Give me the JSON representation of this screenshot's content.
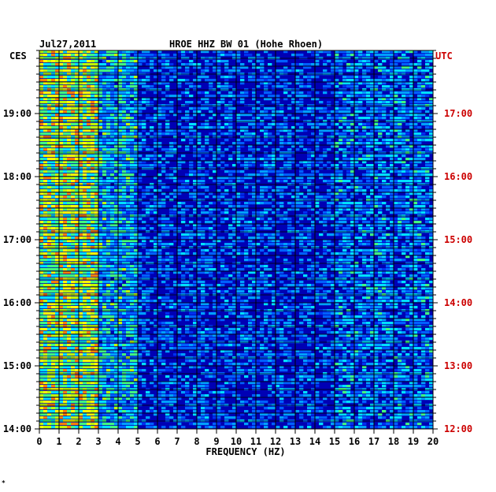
{
  "header": {
    "date": "Jul27,2011",
    "station": "HROE HHZ BW 01 (Hohe Rhoen)"
  },
  "left_zone": "CES",
  "right_zone": "UTC",
  "colors": {
    "background": "#0000b4",
    "left_text": "#000000",
    "right_text": "#cc0000"
  },
  "chart_data": {
    "type": "heatmap",
    "title": "HROE HHZ BW 01 (Hohe Rhoen)",
    "xlabel": "FREQUENCY (HZ)",
    "xlim": [
      0,
      20
    ],
    "x_ticks": [
      "0",
      "1",
      "2",
      "3",
      "4",
      "5",
      "6",
      "7",
      "8",
      "9",
      "10",
      "11",
      "12",
      "13",
      "14",
      "15",
      "16",
      "17",
      "18",
      "19",
      "20"
    ],
    "y_left_ticks": [
      "19:00",
      "18:00",
      "17:00",
      "16:00",
      "15:00",
      "14:00"
    ],
    "y_right_ticks": [
      "17:00",
      "16:00",
      "15:00",
      "14:00",
      "13:00",
      "12:00"
    ],
    "time_range_cest": [
      "14:00",
      "20:00"
    ],
    "time_range_utc": [
      "12:00",
      "18:00"
    ]
  },
  "footer_mark": "*"
}
